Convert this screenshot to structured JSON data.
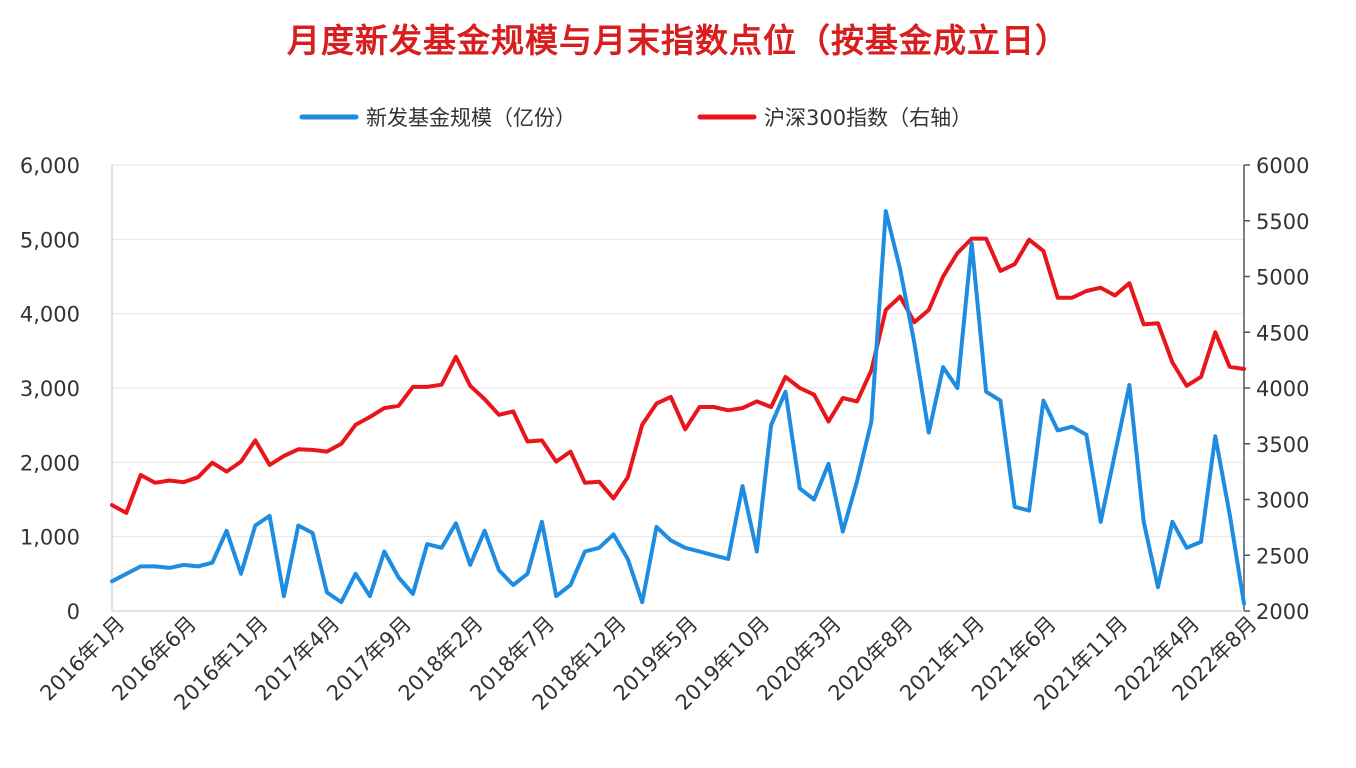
{
  "chart_data": {
    "type": "line",
    "title": "月度新发基金规模与月末指数点位（按基金成立日）",
    "x_tick_labels": [
      "2016年1月",
      "2016年6月",
      "2016年11月",
      "2017年4月",
      "2017年9月",
      "2018年2月",
      "2018年7月",
      "2018年12月",
      "2019年5月",
      "2019年10月",
      "2020年3月",
      "2020年8月",
      "2021年1月",
      "2021年6月",
      "2021年11月",
      "2022年4月",
      "2022年8月"
    ],
    "y_left": {
      "min": 0,
      "max": 6000,
      "ticks": [
        0,
        1000,
        2000,
        3000,
        4000,
        5000,
        6000
      ],
      "tick_labels": [
        "0",
        "1,000",
        "2,000",
        "3,000",
        "4,000",
        "5,000",
        "6,000"
      ]
    },
    "y_right": {
      "min": 2000,
      "max": 6000,
      "ticks": [
        2000,
        2500,
        3000,
        3500,
        4000,
        4500,
        5000,
        5500,
        6000
      ],
      "tick_labels": [
        "2000",
        "2500",
        "3000",
        "3500",
        "4000",
        "4500",
        "5000",
        "5500",
        "6000"
      ]
    },
    "grid": true,
    "legend_position": "top-center",
    "series": [
      {
        "name": "新发基金规模（亿份）",
        "axis": "left",
        "color": "#1e8ce0",
        "x": [
          "2016-01",
          "2016-02",
          "2016-03",
          "2016-04",
          "2016-05",
          "2016-06",
          "2016-07",
          "2016-08",
          "2016-09",
          "2016-10",
          "2016-11",
          "2016-12",
          "2017-01",
          "2017-02",
          "2017-03",
          "2017-04",
          "2017-05",
          "2017-06",
          "2017-07",
          "2017-08",
          "2017-09",
          "2017-10",
          "2017-11",
          "2017-12",
          "2018-01",
          "2018-02",
          "2018-03",
          "2018-04",
          "2018-05",
          "2018-06",
          "2018-07",
          "2018-08",
          "2018-09",
          "2018-10",
          "2018-11",
          "2018-12",
          "2019-01",
          "2019-02",
          "2019-03",
          "2019-04",
          "2019-05",
          "2019-06",
          "2019-07",
          "2019-08",
          "2019-09",
          "2019-10",
          "2019-11",
          "2019-12",
          "2020-01",
          "2020-02",
          "2020-03",
          "2020-04",
          "2020-05",
          "2020-06",
          "2020-07",
          "2020-08",
          "2020-09",
          "2020-10",
          "2020-11",
          "2020-12",
          "2021-01",
          "2021-02",
          "2021-03",
          "2021-04",
          "2021-05",
          "2021-06",
          "2021-07",
          "2021-08",
          "2021-09",
          "2021-10",
          "2021-11",
          "2021-12",
          "2022-01",
          "2022-02",
          "2022-03",
          "2022-04",
          "2022-05",
          "2022-06",
          "2022-07",
          "2022-08"
        ],
        "values": [
          400,
          500,
          600,
          600,
          580,
          620,
          600,
          650,
          1080,
          500,
          1150,
          1280,
          200,
          1150,
          1050,
          250,
          120,
          500,
          200,
          800,
          450,
          230,
          900,
          850,
          1180,
          620,
          1080,
          550,
          350,
          500,
          1200,
          200,
          350,
          800,
          850,
          1030,
          700,
          120,
          1130,
          950,
          850,
          800,
          750,
          700,
          1680,
          800,
          2500,
          2950,
          1650,
          1500,
          1980,
          1070,
          1750,
          2550,
          5380,
          4600,
          3600,
          2400,
          3280,
          3000,
          4950,
          2950,
          2830,
          1400,
          1350,
          2830,
          2430,
          2480,
          2370,
          1200,
          2120,
          3040,
          1200,
          320,
          1200,
          850,
          930,
          2350,
          1300,
          100
        ]
      },
      {
        "name": "沪深300指数（右轴）",
        "axis": "right",
        "color": "#e8161b",
        "x": [
          "2016-01",
          "2016-02",
          "2016-03",
          "2016-04",
          "2016-05",
          "2016-06",
          "2016-07",
          "2016-08",
          "2016-09",
          "2016-10",
          "2016-11",
          "2016-12",
          "2017-01",
          "2017-02",
          "2017-03",
          "2017-04",
          "2017-05",
          "2017-06",
          "2017-07",
          "2017-08",
          "2017-09",
          "2017-10",
          "2017-11",
          "2017-12",
          "2018-01",
          "2018-02",
          "2018-03",
          "2018-04",
          "2018-05",
          "2018-06",
          "2018-07",
          "2018-08",
          "2018-09",
          "2018-10",
          "2018-11",
          "2018-12",
          "2019-01",
          "2019-02",
          "2019-03",
          "2019-04",
          "2019-05",
          "2019-06",
          "2019-07",
          "2019-08",
          "2019-09",
          "2019-10",
          "2019-11",
          "2019-12",
          "2020-01",
          "2020-02",
          "2020-03",
          "2020-04",
          "2020-05",
          "2020-06",
          "2020-07",
          "2020-08",
          "2020-09",
          "2020-10",
          "2020-11",
          "2020-12",
          "2021-01",
          "2021-02",
          "2021-03",
          "2021-04",
          "2021-05",
          "2021-06",
          "2021-07",
          "2021-08",
          "2021-09",
          "2021-10",
          "2021-11",
          "2021-12",
          "2022-01",
          "2022-02",
          "2022-03",
          "2022-04",
          "2022-05",
          "2022-06",
          "2022-07",
          "2022-08"
        ],
        "values": [
          2950,
          2880,
          3220,
          3150,
          3170,
          3155,
          3200,
          3330,
          3250,
          3340,
          3530,
          3310,
          3390,
          3450,
          3445,
          3430,
          3500,
          3670,
          3740,
          3820,
          3840,
          4010,
          4010,
          4030,
          4280,
          4020,
          3900,
          3760,
          3790,
          3520,
          3530,
          3340,
          3430,
          3150,
          3160,
          3010,
          3200,
          3670,
          3860,
          3920,
          3630,
          3830,
          3830,
          3800,
          3820,
          3880,
          3830,
          4100,
          4000,
          3940,
          3700,
          3910,
          3880,
          4160,
          4700,
          4820,
          4590,
          4700,
          5000,
          5210,
          5340,
          5340,
          5050,
          5110,
          5330,
          5230,
          4810,
          4810,
          4870,
          4900,
          4830,
          4940,
          4570,
          4580,
          4230,
          4020,
          4100,
          4500,
          4190,
          4170
        ]
      }
    ]
  }
}
